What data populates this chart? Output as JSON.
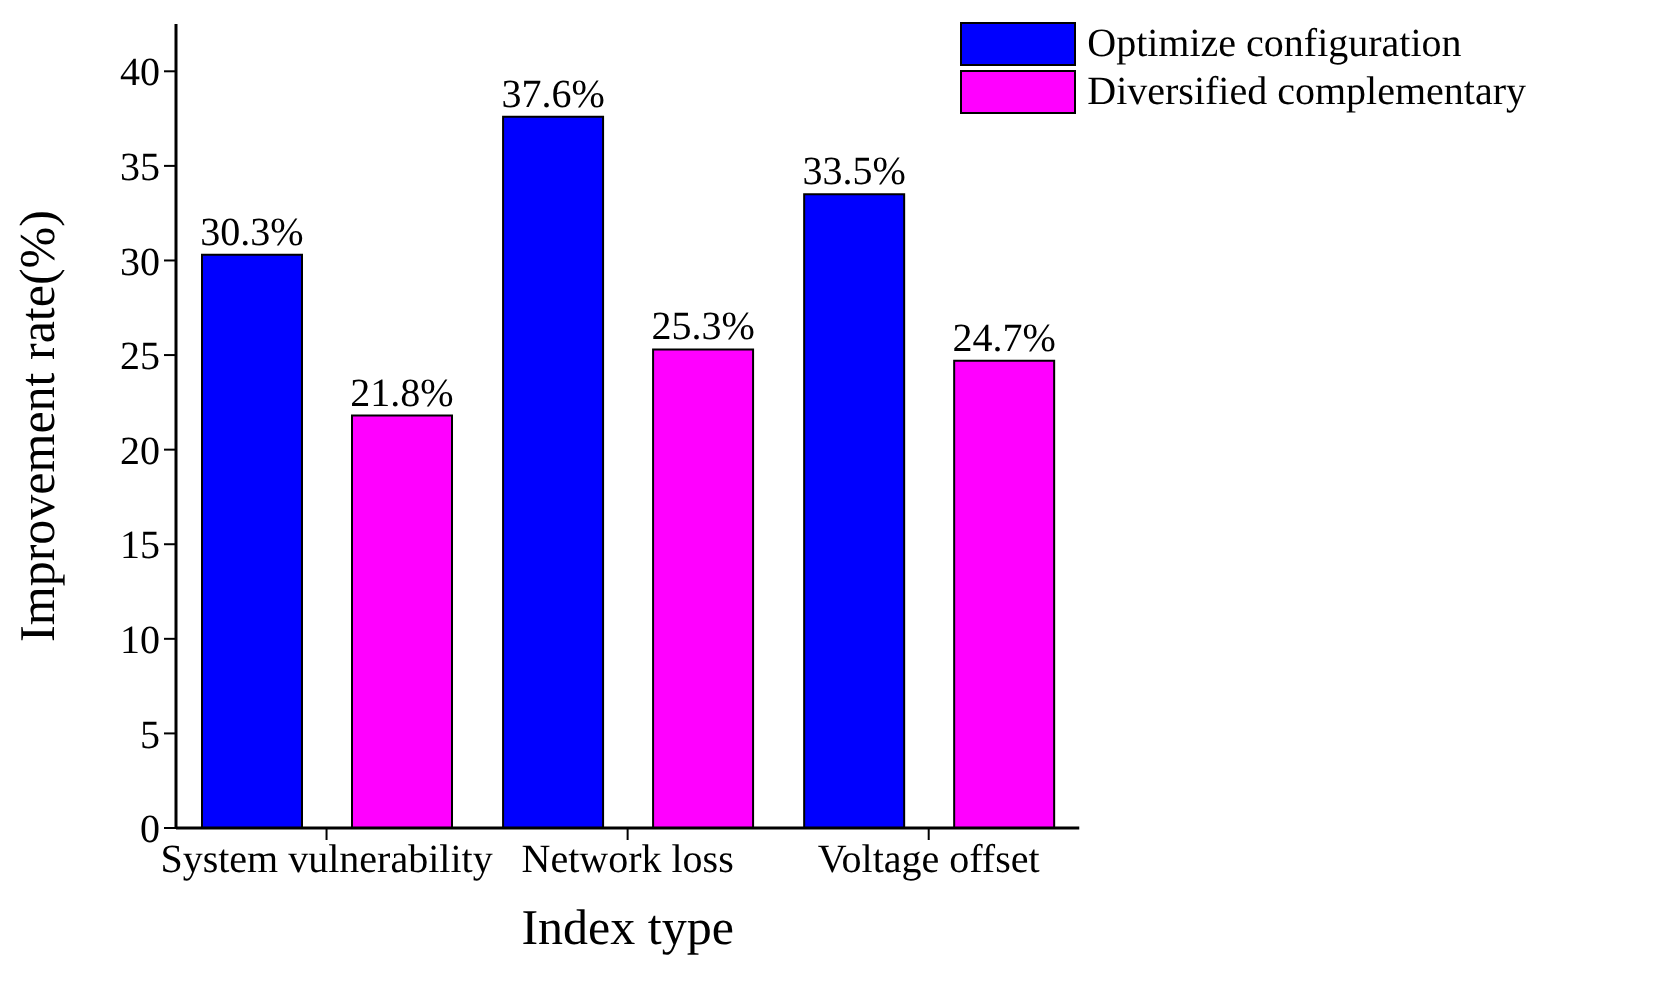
{
  "chart_data": {
    "type": "bar",
    "xlabel": "Index type",
    "ylabel": "Improvement rate(%)",
    "categories": [
      "System vulnerability",
      "Network loss",
      "Voltage offset"
    ],
    "series": [
      {
        "name": "Optimize configuration",
        "color": "#0000ff",
        "values": [
          30.3,
          37.6,
          33.5
        ],
        "value_labels": [
          "30.3%",
          "37.6%",
          "33.5%"
        ]
      },
      {
        "name": "Diversified complementary",
        "color": "#ff00ff",
        "values": [
          21.8,
          25.3,
          24.7
        ],
        "value_labels": [
          "21.8%",
          "25.3%",
          "24.7%"
        ]
      }
    ],
    "ylim": [
      0,
      42.5
    ],
    "yticks": [
      0,
      5,
      10,
      15,
      20,
      25,
      30,
      35,
      40
    ],
    "grid": false,
    "legend": "top right"
  }
}
